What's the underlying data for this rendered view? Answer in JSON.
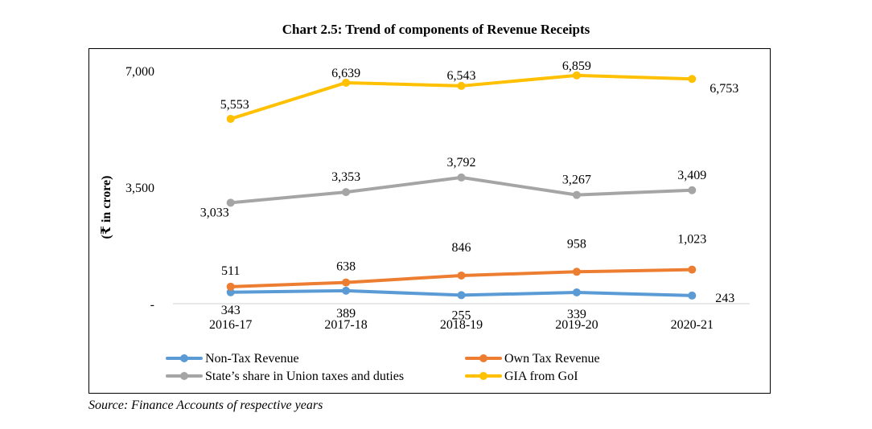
{
  "chart_data": {
    "type": "line",
    "title": "Chart 2.5: Trend of components of Revenue Receipts",
    "ylabel": "(₹ in crore)",
    "xlabel": "",
    "ylim": [
      0,
      7000
    ],
    "yticks": [
      {
        "value": 0,
        "label": "-"
      },
      {
        "value": 3500,
        "label": "3,500"
      },
      {
        "value": 7000,
        "label": "7,000"
      }
    ],
    "categories": [
      "2016-17",
      "2017-18",
      "2018-19",
      "2019-20",
      "2020-21"
    ],
    "series": [
      {
        "name": "Non-Tax Revenue",
        "color": "#5B9BD5",
        "values": [
          343,
          389,
          255,
          339,
          243
        ],
        "labels": [
          "343",
          "389",
          "255",
          "339",
          "243"
        ]
      },
      {
        "name": "Own Tax Revenue",
        "color": "#ED7D31",
        "values": [
          511,
          638,
          846,
          958,
          1023
        ],
        "labels": [
          "511",
          "638",
          "846",
          "958",
          "1,023"
        ]
      },
      {
        "name": "State’s share in Union taxes and  duties",
        "color": "#A5A5A5",
        "values": [
          3033,
          3353,
          3792,
          3267,
          3409
        ],
        "labels": [
          "3,033",
          "3,353",
          "3,792",
          "3,267",
          "3,409"
        ]
      },
      {
        "name": "GIA from GoI",
        "color": "#FFC000",
        "values": [
          5553,
          6639,
          6543,
          6859,
          6753
        ],
        "labels": [
          "5,553",
          "6,639",
          "6,543",
          "6,859",
          "6,753"
        ]
      }
    ],
    "legend": "bottom",
    "grid": false
  },
  "source": "Source: Finance Accounts of respective years"
}
